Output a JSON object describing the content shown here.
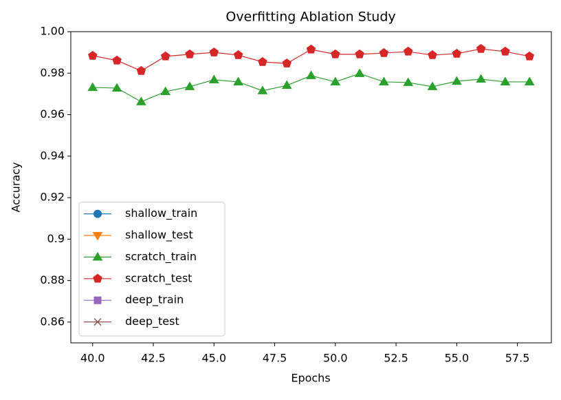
{
  "chart_data": {
    "type": "line",
    "title": "Overfitting Ablation Study",
    "xlabel": "Epochs",
    "ylabel": "Accuracy",
    "x": [
      40,
      41,
      42,
      43,
      44,
      45,
      46,
      47,
      48,
      49,
      50,
      51,
      52,
      53,
      54,
      55,
      56,
      57,
      58
    ],
    "series": [
      {
        "name": "shallow_train",
        "color": "#1f77b4",
        "marker": "circle",
        "values": [
          null,
          null,
          null,
          null,
          null,
          null,
          null,
          null,
          null,
          null,
          null,
          null,
          null,
          null,
          null,
          null,
          null,
          null,
          null
        ]
      },
      {
        "name": "shallow_test",
        "color": "#ff7f0e",
        "marker": "triangle-down",
        "values": [
          null,
          null,
          null,
          null,
          null,
          null,
          null,
          null,
          null,
          null,
          null,
          null,
          null,
          null,
          null,
          null,
          null,
          null,
          null
        ]
      },
      {
        "name": "scratch_train",
        "color": "#2ca02c",
        "marker": "triangle-up",
        "values": [
          0.9731,
          0.9728,
          0.9662,
          0.9711,
          0.9735,
          0.9768,
          0.9758,
          0.9715,
          0.9741,
          0.9788,
          0.9758,
          0.9798,
          0.9758,
          0.9755,
          0.9735,
          0.9761,
          0.9771,
          0.9758,
          0.9758
        ]
      },
      {
        "name": "scratch_test",
        "color": "#d62728",
        "marker": "pentagon",
        "values": [
          0.9884,
          0.9861,
          0.9811,
          0.9881,
          0.9891,
          0.99,
          0.9887,
          0.9854,
          0.9847,
          0.9914,
          0.9891,
          0.9891,
          0.9897,
          0.9904,
          0.9887,
          0.9894,
          0.9917,
          0.9904,
          0.9881
        ]
      },
      {
        "name": "deep_train",
        "color": "#9467bd",
        "marker": "square",
        "values": [
          null,
          null,
          null,
          null,
          null,
          null,
          null,
          null,
          null,
          null,
          null,
          null,
          null,
          null,
          null,
          null,
          null,
          null,
          null
        ]
      },
      {
        "name": "deep_test",
        "color": "#8c564b",
        "marker": "x",
        "values": [
          null,
          null,
          null,
          null,
          null,
          null,
          null,
          null,
          null,
          null,
          null,
          null,
          null,
          null,
          null,
          null,
          null,
          null,
          null
        ]
      }
    ],
    "xlim": [
      39.1,
      58.9
    ],
    "xticks": [
      {
        "value": 40,
        "label": "40.0"
      },
      {
        "value": 42.5,
        "label": "42.5"
      },
      {
        "value": 45,
        "label": "45.0"
      },
      {
        "value": 47.5,
        "label": "47.5"
      },
      {
        "value": 50,
        "label": "50.0"
      },
      {
        "value": 52.5,
        "label": "52.5"
      },
      {
        "value": 55,
        "label": "55.0"
      },
      {
        "value": 57.5,
        "label": "57.5"
      }
    ],
    "ylim": [
      0.85,
      1.0
    ],
    "yticks": [
      0.86,
      0.88,
      0.9,
      0.92,
      0.94,
      0.96,
      0.98,
      {
        "value": 1.0,
        "label": "1.00"
      }
    ],
    "grid": false,
    "legend": "lower left"
  }
}
